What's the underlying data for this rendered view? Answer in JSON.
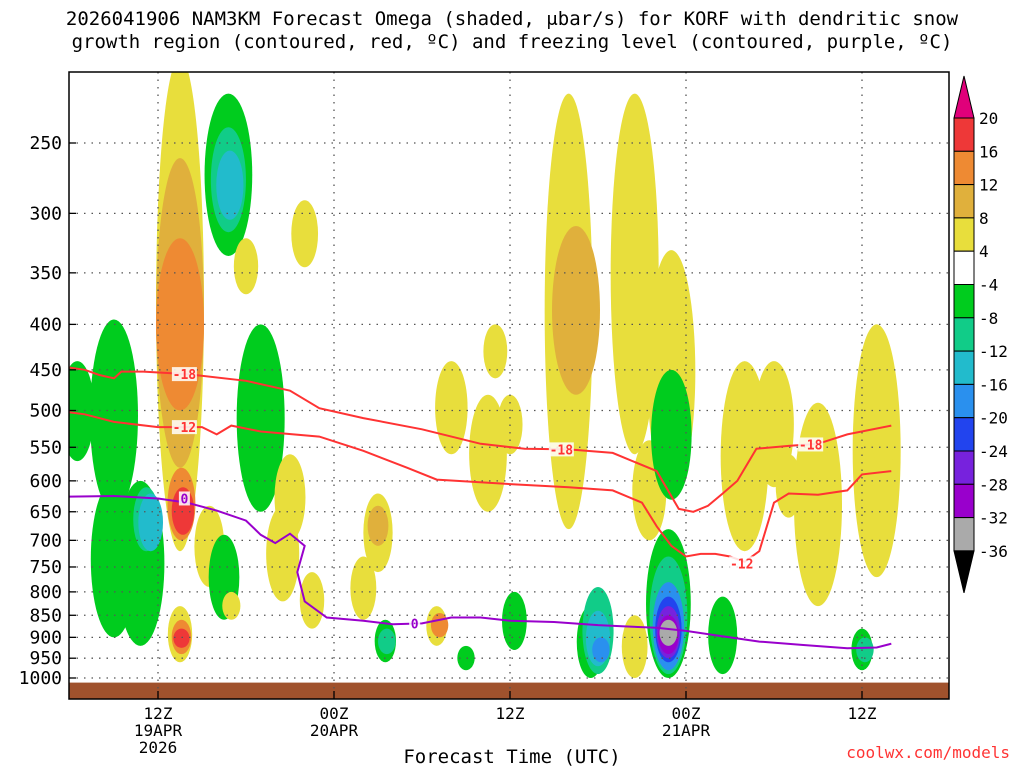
{
  "title": {
    "line1": "2026041906 NAM3KM Forecast Omega (shaded, μbar/s) for KORF with dendritic snow",
    "line2": "growth region (contoured, red, ºC) and freezing level (contoured, purple, ºC)"
  },
  "watermark": "coolwx.com/models",
  "chart_data": {
    "type": "heatmap",
    "title": "2026041906 NAM3KM Forecast Omega (shaded, μbar/s) for KORF with dendritic snow growth region (contoured, red, ºC) and freezing level (contoured, purple, ºC)",
    "xlabel": "Forecast Time (UTC)",
    "ylabel": "Pressure (hPa)",
    "x_unit": "forecast hour",
    "xlim": [
      -3,
      56
    ],
    "ylim": [
      1040,
      180
    ],
    "y_ticks": [
      250,
      300,
      350,
      400,
      450,
      500,
      550,
      600,
      650,
      700,
      750,
      800,
      850,
      900,
      950,
      1000
    ],
    "x_ticks": [
      {
        "hour": 6,
        "labels": [
          "12Z",
          "19APR",
          "2026"
        ]
      },
      {
        "hour": 18,
        "labels": [
          "00Z",
          "20APR"
        ]
      },
      {
        "hour": 30,
        "labels": [
          "12Z"
        ]
      },
      {
        "hour": 42,
        "labels": [
          "00Z",
          "21APR"
        ]
      },
      {
        "hour": 54,
        "labels": [
          "12Z"
        ]
      }
    ],
    "colorbar": {
      "labels": [
        "20",
        "16",
        "12",
        "8",
        "4",
        "-4",
        "-8",
        "-12",
        "-16",
        "-20",
        "-24",
        "-28",
        "-32",
        "-36"
      ],
      "bins": [
        {
          "from": 16,
          "to": 20,
          "color": "#ee3838"
        },
        {
          "from": 12,
          "to": 16,
          "color": "#ee8a33"
        },
        {
          "from": 8,
          "to": 12,
          "color": "#e0b03c"
        },
        {
          "from": 4,
          "to": 8,
          "color": "#e8de3c"
        },
        {
          "from": -4,
          "to": 4,
          "color": "#ffffff"
        },
        {
          "from": -8,
          "to": -4,
          "color": "#00cc1e"
        },
        {
          "from": -12,
          "to": -8,
          "color": "#11cc88"
        },
        {
          "from": -16,
          "to": -12,
          "color": "#22bbcc"
        },
        {
          "from": -20,
          "to": -16,
          "color": "#2a90ee"
        },
        {
          "from": -24,
          "to": -20,
          "color": "#2244ee"
        },
        {
          "from": -28,
          "to": -24,
          "color": "#7722dd"
        },
        {
          "from": -32,
          "to": -28,
          "color": "#9900cc"
        },
        {
          "from": -36,
          "to": -32,
          "color": "#aaaaaa"
        }
      ],
      "over_color": "#e0007a",
      "under_color": "#000000"
    },
    "shaded_regions": [
      {
        "hour": -2,
        "p_top": 930,
        "p_bot": 970,
        "value": 5
      },
      {
        "hour": 0.5,
        "p_top": 440,
        "p_bot": 570,
        "value": -6
      },
      {
        "hour": 3,
        "p_top": 395,
        "p_bot": 650,
        "value": -6
      },
      {
        "hour": 3,
        "p_top": 600,
        "p_bot": 900,
        "value": -6
      },
      {
        "hour": 4.8,
        "p_top": 600,
        "p_bot": 920,
        "value": -6
      },
      {
        "hour": 5.2,
        "p_top": 610,
        "p_bot": 720,
        "value": -10
      },
      {
        "hour": 5.5,
        "p_top": 620,
        "p_bot": 720,
        "value": -14
      },
      {
        "hour": 7.5,
        "p_top": 200,
        "p_bot": 720,
        "value": 6
      },
      {
        "hour": 7.5,
        "p_top": 260,
        "p_bot": 580,
        "value": 10
      },
      {
        "hour": 7.5,
        "p_top": 320,
        "p_bot": 500,
        "value": 13
      },
      {
        "hour": 7.6,
        "p_top": 580,
        "p_bot": 700,
        "value": 13
      },
      {
        "hour": 7.7,
        "p_top": 610,
        "p_bot": 690,
        "value": 17
      },
      {
        "hour": 7.5,
        "p_top": 830,
        "p_bot": 960,
        "value": 6
      },
      {
        "hour": 7.6,
        "p_top": 860,
        "p_bot": 940,
        "value": 13
      },
      {
        "hour": 7.6,
        "p_top": 880,
        "p_bot": 925,
        "value": 18
      },
      {
        "hour": 9.5,
        "p_top": 640,
        "p_bot": 790,
        "value": 6
      },
      {
        "hour": 10.5,
        "p_top": 690,
        "p_bot": 860,
        "value": -6
      },
      {
        "hour": 10.8,
        "p_top": 220,
        "p_bot": 335,
        "value": -6
      },
      {
        "hour": 10.8,
        "p_top": 240,
        "p_bot": 315,
        "value": -10
      },
      {
        "hour": 10.9,
        "p_top": 255,
        "p_bot": 305,
        "value": -14
      },
      {
        "hour": 11,
        "p_top": 800,
        "p_bot": 860,
        "value": 6
      },
      {
        "hour": 12,
        "p_top": 320,
        "p_bot": 370,
        "value": 6
      },
      {
        "hour": 13,
        "p_top": 400,
        "p_bot": 650,
        "value": -6
      },
      {
        "hour": 14.5,
        "p_top": 640,
        "p_bot": 820,
        "value": 6
      },
      {
        "hour": 15,
        "p_top": 560,
        "p_bot": 700,
        "value": 6
      },
      {
        "hour": 16,
        "p_top": 290,
        "p_bot": 345,
        "value": 6
      },
      {
        "hour": 16.5,
        "p_top": 760,
        "p_bot": 880,
        "value": 6
      },
      {
        "hour": 20,
        "p_top": 730,
        "p_bot": 860,
        "value": 6
      },
      {
        "hour": 21,
        "p_top": 620,
        "p_bot": 760,
        "value": 6
      },
      {
        "hour": 21,
        "p_top": 640,
        "p_bot": 710,
        "value": 9
      },
      {
        "hour": 21.5,
        "p_top": 860,
        "p_bot": 960,
        "value": -6
      },
      {
        "hour": 21.6,
        "p_top": 880,
        "p_bot": 940,
        "value": -10
      },
      {
        "hour": 25,
        "p_top": 830,
        "p_bot": 920,
        "value": 6
      },
      {
        "hour": 25.2,
        "p_top": 845,
        "p_bot": 900,
        "value": 13
      },
      {
        "hour": 26,
        "p_top": 440,
        "p_bot": 560,
        "value": 6
      },
      {
        "hour": 27,
        "p_top": 920,
        "p_bot": 980,
        "value": -6
      },
      {
        "hour": 28.5,
        "p_top": 480,
        "p_bot": 650,
        "value": 6
      },
      {
        "hour": 29,
        "p_top": 400,
        "p_bot": 460,
        "value": 6
      },
      {
        "hour": 30,
        "p_top": 480,
        "p_bot": 560,
        "value": 6
      },
      {
        "hour": 30.3,
        "p_top": 800,
        "p_bot": 930,
        "value": -6
      },
      {
        "hour": 34,
        "p_top": 220,
        "p_bot": 680,
        "value": 6
      },
      {
        "hour": 34.5,
        "p_top": 310,
        "p_bot": 480,
        "value": 9
      },
      {
        "hour": 35.5,
        "p_top": 830,
        "p_bot": 1000,
        "value": -6
      },
      {
        "hour": 36,
        "p_top": 790,
        "p_bot": 990,
        "value": -10
      },
      {
        "hour": 36,
        "p_top": 840,
        "p_bot": 970,
        "value": -14
      },
      {
        "hour": 36.2,
        "p_top": 900,
        "p_bot": 960,
        "value": -18
      },
      {
        "hour": 38.5,
        "p_top": 220,
        "p_bot": 560,
        "value": 6
      },
      {
        "hour": 38.5,
        "p_top": 850,
        "p_bot": 1000,
        "value": 6
      },
      {
        "hour": 39.5,
        "p_top": 540,
        "p_bot": 700,
        "value": 6
      },
      {
        "hour": 40.8,
        "p_top": 680,
        "p_bot": 1000,
        "value": -6
      },
      {
        "hour": 40.8,
        "p_top": 730,
        "p_bot": 990,
        "value": -10
      },
      {
        "hour": 40.8,
        "p_top": 780,
        "p_bot": 980,
        "value": -18
      },
      {
        "hour": 40.8,
        "p_top": 810,
        "p_bot": 960,
        "value": -22
      },
      {
        "hour": 40.8,
        "p_top": 830,
        "p_bot": 950,
        "value": -26
      },
      {
        "hour": 40.8,
        "p_top": 850,
        "p_bot": 940,
        "value": -30
      },
      {
        "hour": 40.8,
        "p_top": 860,
        "p_bot": 920,
        "value": -34
      },
      {
        "hour": 41,
        "p_top": 330,
        "p_bot": 620,
        "value": 6
      },
      {
        "hour": 41,
        "p_top": 450,
        "p_bot": 630,
        "value": -6
      },
      {
        "hour": 44.5,
        "p_top": 810,
        "p_bot": 990,
        "value": -6
      },
      {
        "hour": 46,
        "p_top": 440,
        "p_bot": 720,
        "value": 6
      },
      {
        "hour": 48,
        "p_top": 440,
        "p_bot": 610,
        "value": 6
      },
      {
        "hour": 49,
        "p_top": 560,
        "p_bot": 660,
        "value": 6
      },
      {
        "hour": 51,
        "p_top": 490,
        "p_bot": 830,
        "value": 6
      },
      {
        "hour": 54,
        "p_top": 880,
        "p_bot": 980,
        "value": -6
      },
      {
        "hour": 54.2,
        "p_top": 900,
        "p_bot": 960,
        "value": -10
      },
      {
        "hour": 55,
        "p_top": 400,
        "p_bot": 770,
        "value": 6
      },
      {
        "hour": 55.5,
        "p_top": 500,
        "p_bot": 580,
        "value": 6
      }
    ],
    "contours": [
      {
        "name": "-18 ºC",
        "label": "-18",
        "color": "#ff3333",
        "points": [
          [
            -3,
            440
          ],
          [
            -1,
            445
          ],
          [
            1,
            450
          ],
          [
            2,
            456
          ],
          [
            3,
            460
          ],
          [
            3.5,
            452
          ],
          [
            5,
            452
          ],
          [
            8,
            455
          ],
          [
            12,
            463
          ],
          [
            15,
            475
          ],
          [
            17,
            497
          ],
          [
            20,
            510
          ],
          [
            24,
            525
          ],
          [
            28,
            545
          ],
          [
            31,
            552
          ],
          [
            34,
            553
          ],
          [
            37,
            558
          ],
          [
            40,
            585
          ],
          [
            41.5,
            645
          ],
          [
            42.5,
            650
          ],
          [
            43.5,
            640
          ],
          [
            44.5,
            620
          ],
          [
            45.5,
            600
          ],
          [
            46.8,
            552
          ],
          [
            49,
            548
          ],
          [
            51,
            545
          ],
          [
            53,
            532
          ],
          [
            56,
            520
          ]
        ],
        "label_points": [
          [
            7.8,
            455
          ],
          [
            33.5,
            553
          ],
          [
            50.5,
            546
          ]
        ]
      },
      {
        "name": "-12 ºC",
        "label": "-12",
        "color": "#ff3333",
        "points": [
          [
            -3,
            495
          ],
          [
            1,
            505
          ],
          [
            3,
            515
          ],
          [
            6,
            522
          ],
          [
            9,
            522
          ],
          [
            10,
            532
          ],
          [
            11,
            520
          ],
          [
            13,
            528
          ],
          [
            17,
            535
          ],
          [
            20,
            555
          ],
          [
            23,
            580
          ],
          [
            25,
            598
          ],
          [
            30,
            605
          ],
          [
            34,
            610
          ],
          [
            37,
            615
          ],
          [
            39,
            635
          ],
          [
            40,
            675
          ],
          [
            41,
            710
          ],
          [
            42,
            730
          ],
          [
            43,
            725
          ],
          [
            44,
            725
          ],
          [
            45,
            730
          ],
          [
            46,
            740
          ],
          [
            47,
            720
          ],
          [
            48,
            635
          ],
          [
            49,
            620
          ],
          [
            51,
            622
          ],
          [
            53,
            615
          ],
          [
            54,
            590
          ],
          [
            56,
            585
          ]
        ],
        "label_points": [
          [
            7.8,
            522
          ],
          [
            45.8,
            743
          ]
        ]
      },
      {
        "name": "0 ºC freezing level",
        "label": "0",
        "color": "#9900cc",
        "points": [
          [
            -3,
            625
          ],
          [
            0,
            625
          ],
          [
            3,
            624
          ],
          [
            6,
            628
          ],
          [
            8,
            635
          ],
          [
            10,
            648
          ],
          [
            12,
            665
          ],
          [
            13,
            690
          ],
          [
            14,
            705
          ],
          [
            15,
            688
          ],
          [
            16,
            710
          ],
          [
            15.5,
            760
          ],
          [
            16,
            820
          ],
          [
            17.5,
            855
          ],
          [
            20,
            862
          ],
          [
            22,
            870
          ],
          [
            24,
            868
          ],
          [
            26,
            855
          ],
          [
            28,
            855
          ],
          [
            30,
            862
          ],
          [
            33,
            865
          ],
          [
            36,
            872
          ],
          [
            38,
            875
          ],
          [
            40,
            878
          ],
          [
            42,
            885
          ],
          [
            44,
            895
          ],
          [
            47,
            910
          ],
          [
            50,
            918
          ],
          [
            53,
            926
          ],
          [
            55,
            924
          ],
          [
            56,
            915
          ]
        ],
        "label_points": [
          [
            7.8,
            628
          ],
          [
            23.5,
            868
          ]
        ]
      }
    ],
    "ground": {
      "p_top": 1012,
      "color": "#a0522d"
    }
  }
}
